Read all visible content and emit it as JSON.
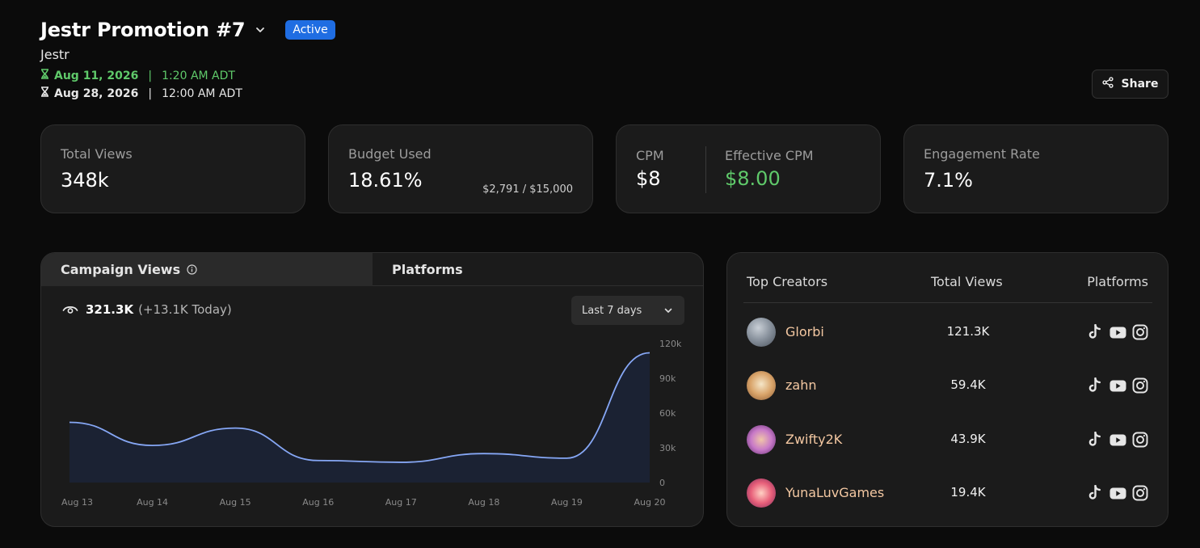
{
  "header": {
    "title": "Jestr Promotion #7",
    "status": "Active",
    "brand": "Jestr",
    "start": {
      "date": "Aug 11, 2026",
      "sep": "|",
      "time": "1:20 AM ADT"
    },
    "end": {
      "date": "Aug 28, 2026",
      "sep": "|",
      "time": "12:00 AM ADT"
    },
    "share_label": "Share"
  },
  "stats": {
    "total_views": {
      "label": "Total Views",
      "value": "348k"
    },
    "budget": {
      "label": "Budget Used",
      "value": "18.61%",
      "detail": "$2,791 / $15,000"
    },
    "cpm": {
      "label": "CPM",
      "value": "$8",
      "effective_label": "Effective CPM",
      "effective_value": "$8.00"
    },
    "engagement": {
      "label": "Engagement Rate",
      "value": "7.1%"
    }
  },
  "views_panel": {
    "tabs": [
      {
        "label": "Campaign Views"
      },
      {
        "label": "Platforms"
      }
    ],
    "total": "321.3K",
    "today": "(+13.1K Today)",
    "range_label": "Last 7 days"
  },
  "chart_data": {
    "type": "area",
    "categories": [
      "Aug 13",
      "Aug 14",
      "Aug 15",
      "Aug 16",
      "Aug 17",
      "Aug 18",
      "Aug 19",
      "Aug 20"
    ],
    "values": [
      52000,
      32000,
      47000,
      19000,
      17500,
      25000,
      21000,
      112000
    ],
    "yticks": [
      0,
      30000,
      60000,
      90000,
      120000
    ],
    "ytick_labels": [
      "0",
      "30k",
      "60k",
      "90k",
      "120k"
    ],
    "ylim": [
      0,
      120000
    ],
    "line_color": "#86a7f5",
    "fill_color": "#1b2233",
    "grid": false
  },
  "creators": {
    "headers": {
      "name": "Top Creators",
      "views": "Total Views",
      "platforms": "Platforms"
    },
    "rows": [
      {
        "name": "Glorbi",
        "views": "121.3K"
      },
      {
        "name": "zahn",
        "views": "59.4K"
      },
      {
        "name": "Zwifty2K",
        "views": "43.9K"
      },
      {
        "name": "YunaLuvGames",
        "views": "19.4K"
      }
    ],
    "platform_icons": [
      "tiktok-icon",
      "youtube-icon",
      "instagram-icon"
    ]
  },
  "colors": {
    "accent_green": "#5fc96a",
    "badge_blue": "#1f6de2",
    "creator_name": "#f4c8a2"
  }
}
